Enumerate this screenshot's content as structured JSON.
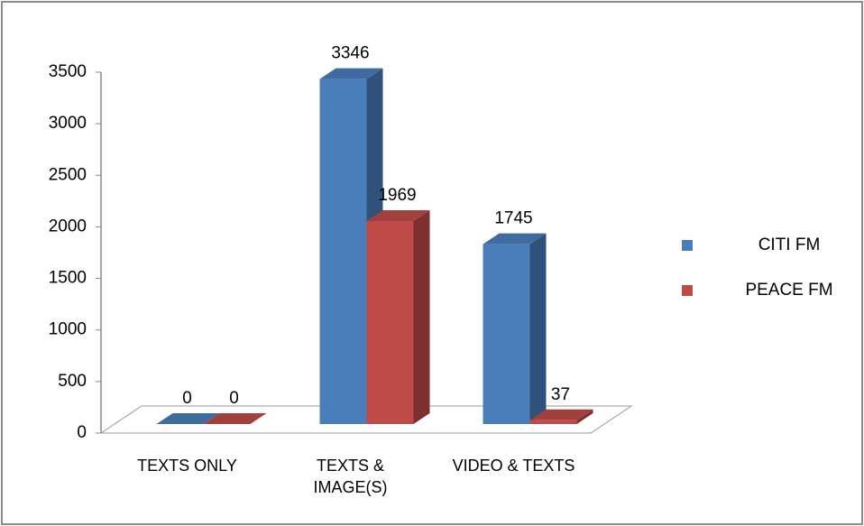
{
  "chart_data": {
    "type": "bar3d",
    "categories": [
      "TEXTS ONLY",
      "TEXTS & IMAGE(S)",
      "VIDEO & TEXTS"
    ],
    "series": [
      {
        "name": "CITI FM",
        "color": "#4a7ebb",
        "values": [
          0,
          3346,
          1745
        ]
      },
      {
        "name": "PEACE FM",
        "color": "#be4b48",
        "values": [
          0,
          1969,
          37
        ]
      }
    ],
    "ylim": [
      0,
      3500
    ],
    "yticks": [
      0,
      500,
      1000,
      1500,
      2000,
      2500,
      3000,
      3500
    ],
    "legend": "right"
  }
}
